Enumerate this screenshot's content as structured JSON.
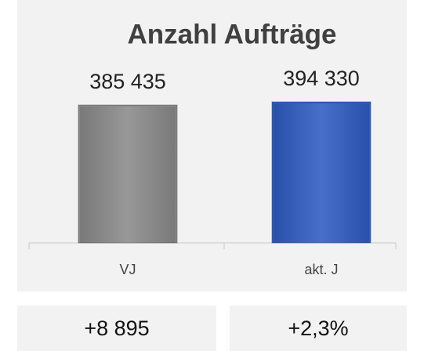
{
  "chart_data": {
    "type": "bar",
    "title": "Anzahl Aufträge",
    "categories": [
      "VJ",
      "akt. J"
    ],
    "values": [
      385435,
      394330
    ],
    "value_labels": [
      "385 435",
      "394 330"
    ],
    "colors": [
      "#8a8a8a",
      "#2e5cc2"
    ]
  },
  "summary": {
    "difference": "+8 895",
    "change": "+2,3%"
  }
}
